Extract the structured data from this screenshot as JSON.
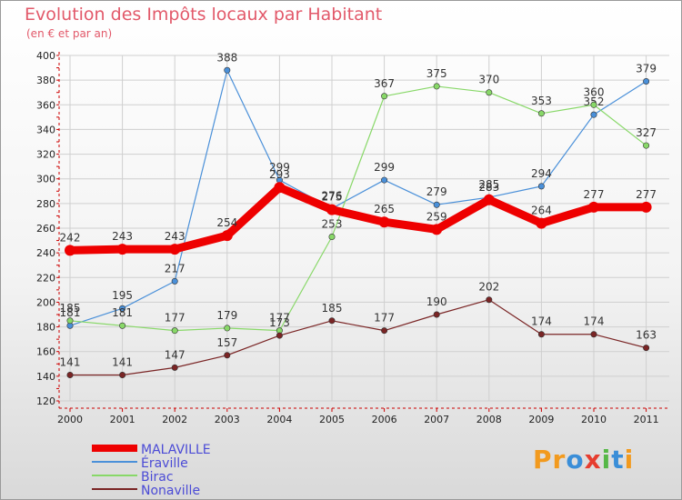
{
  "title": "Evolution des Impôts locaux par Habitant",
  "subtitle": "(en € et par an)",
  "logo": {
    "text": "Proxiti",
    "letters": [
      "P",
      "r",
      "o",
      "x",
      "i",
      "t",
      "i"
    ],
    "colors": [
      "#f29a1e",
      "#f29a1e",
      "#3a8ed8",
      "#e63d2f",
      "#56b847",
      "#3a8ed8",
      "#f29a1e"
    ]
  },
  "colors": {
    "title": "#e2596a",
    "axis": "#cc0000",
    "tick_text": "#222222",
    "legend_text": "#4b4bd6",
    "grid": "#cfcfcf"
  },
  "chart_data": {
    "type": "line",
    "title": "Evolution des Impôts locaux par Habitant",
    "subtitle": "(en € et par an)",
    "xlabel": "",
    "ylabel": "",
    "x": [
      "2000",
      "2001",
      "2002",
      "2003",
      "2004",
      "2005",
      "2006",
      "2007",
      "2008",
      "2009",
      "2010",
      "2011"
    ],
    "ylim": [
      120,
      400
    ],
    "yticks": [
      120,
      140,
      160,
      180,
      200,
      220,
      240,
      260,
      280,
      300,
      320,
      340,
      360,
      380,
      400
    ],
    "grid": true,
    "legend_position": "bottom-left",
    "series": [
      {
        "name": "MALAVILLE",
        "color": "#ee0000",
        "width": 9,
        "values": [
          242,
          243,
          243,
          254,
          293,
          275,
          265,
          259,
          283,
          264,
          277,
          277
        ]
      },
      {
        "name": "Éraville",
        "color": "#4a90d9",
        "width": 1.2,
        "values": [
          181,
          195,
          217,
          388,
          299,
          276,
          299,
          279,
          285,
          294,
          352,
          379
        ]
      },
      {
        "name": "Birac",
        "color": "#88d868",
        "width": 1.2,
        "values": [
          185,
          181,
          177,
          179,
          177,
          253,
          367,
          375,
          370,
          353,
          360,
          327
        ]
      },
      {
        "name": "Nonaville",
        "color": "#7a2525",
        "width": 1.2,
        "values": [
          141,
          141,
          147,
          157,
          173,
          185,
          177,
          190,
          202,
          174,
          174,
          163
        ]
      }
    ]
  }
}
